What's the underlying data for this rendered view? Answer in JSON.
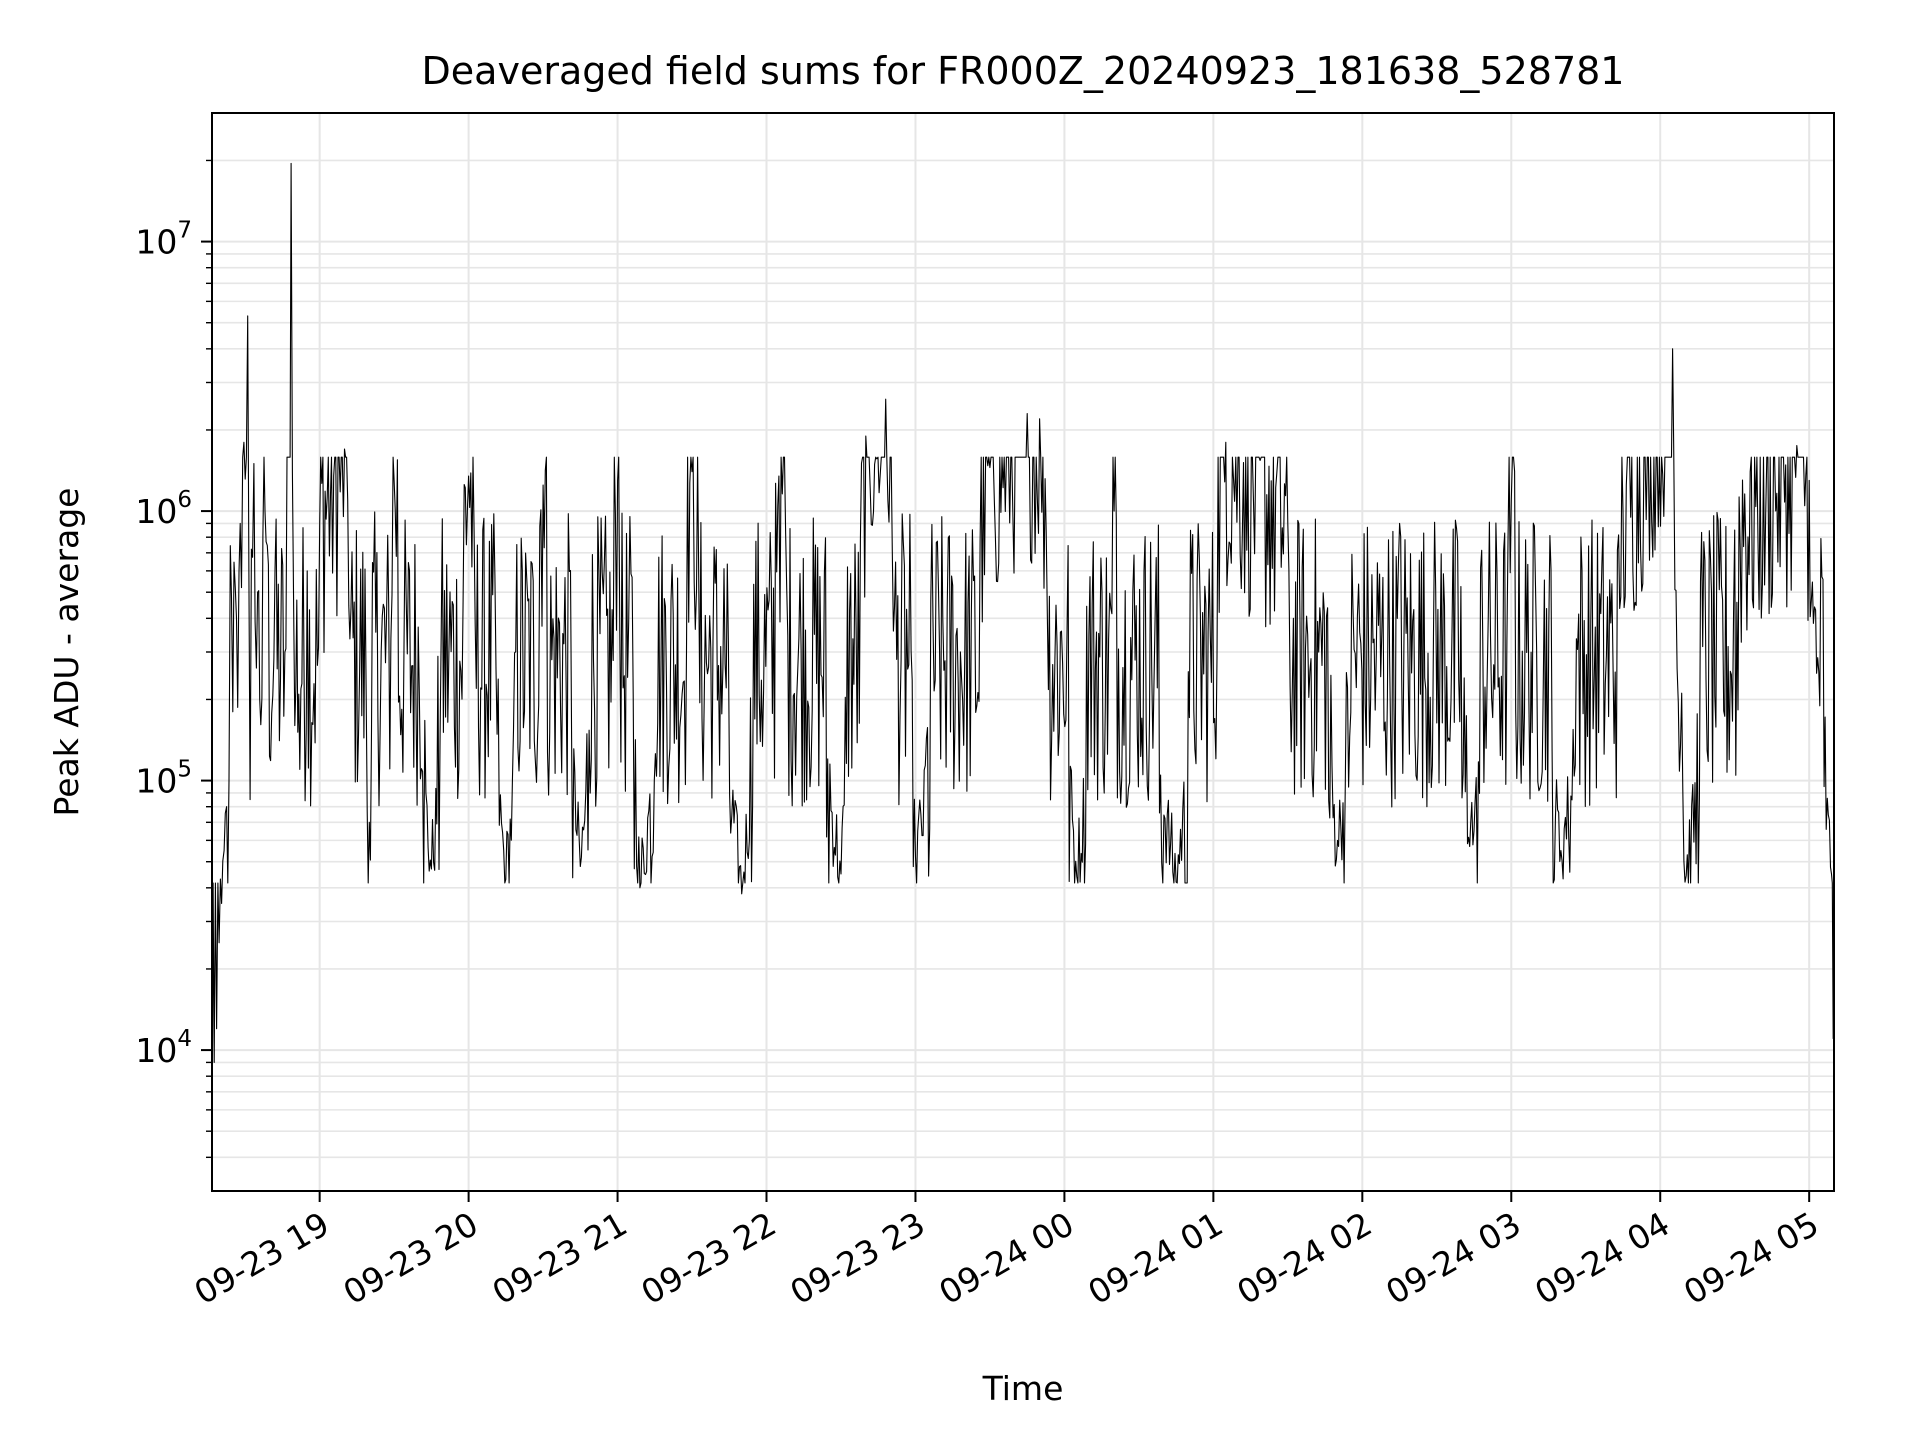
{
  "chart_data": {
    "type": "line",
    "title": "Deaveraged field sums for FR000Z_20240923_181638_528781",
    "xlabel": "Time",
    "ylabel": "Peak ADU - average",
    "yscale": "log",
    "ylim": [
      3000,
      30000000
    ],
    "xlim": [
      "2024-09-23 18:16:38",
      "2024-09-24 05:10:00"
    ],
    "grid": true,
    "line_color": "#000000",
    "grid_color": "#e6e6e6",
    "x_ticks": [
      {
        "t": "2024-09-23 19:00",
        "label": "09-23 19"
      },
      {
        "t": "2024-09-23 20:00",
        "label": "09-23 20"
      },
      {
        "t": "2024-09-23 21:00",
        "label": "09-23 21"
      },
      {
        "t": "2024-09-23 22:00",
        "label": "09-23 22"
      },
      {
        "t": "2024-09-23 23:00",
        "label": "09-23 23"
      },
      {
        "t": "2024-09-24 00:00",
        "label": "09-24 00"
      },
      {
        "t": "2024-09-24 01:00",
        "label": "09-24 01"
      },
      {
        "t": "2024-09-24 02:00",
        "label": "09-24 02"
      },
      {
        "t": "2024-09-24 03:00",
        "label": "09-24 03"
      },
      {
        "t": "2024-09-24 04:00",
        "label": "09-24 04"
      },
      {
        "t": "2024-09-24 05:00",
        "label": "09-24 05"
      }
    ],
    "y_ticks": [
      {
        "value": 10000,
        "base": "10",
        "exp": "4"
      },
      {
        "value": 100000,
        "base": "10",
        "exp": "5"
      },
      {
        "value": 1000000,
        "base": "10",
        "exp": "6"
      },
      {
        "value": 10000000,
        "base": "10",
        "exp": "7"
      }
    ],
    "series": [
      {
        "note_envelope": "dense noisy signal; points listed as approximate envelope",
        "points": [
          [
            "2024-09-23 18:16:40",
            4500
          ],
          [
            "2024-09-23 18:17:30",
            9000
          ],
          [
            "2024-09-23 18:18:30",
            12000
          ],
          [
            "2024-09-23 18:19:30",
            25000
          ],
          [
            "2024-09-23 18:20:30",
            35000
          ],
          [
            "2024-09-23 18:21:30",
            55000
          ],
          [
            "2024-09-23 18:22:30",
            80000
          ],
          [
            "2024-09-23 18:23:30",
            100000
          ],
          [
            "2024-09-23 18:25:00",
            180000
          ],
          [
            "2024-09-23 18:26:30",
            400000
          ],
          [
            "2024-09-23 18:28:00",
            900000
          ],
          [
            "2024-09-23 18:29:30",
            1800000
          ],
          [
            "2024-09-23 18:31:00",
            5300000
          ],
          [
            "2024-09-23 18:32:00",
            85000
          ],
          [
            "2024-09-23 18:33:30",
            1500000
          ],
          [
            "2024-09-23 18:35:00",
            500000
          ],
          [
            "2024-09-23 18:38:00",
            1000000
          ],
          [
            "2024-09-23 18:42:00",
            600000
          ],
          [
            "2024-09-23 18:46:00",
            300000
          ],
          [
            "2024-09-23 18:48:30",
            19500000
          ],
          [
            "2024-09-23 18:50:00",
            160000
          ],
          [
            "2024-09-23 18:52:00",
            110000
          ],
          [
            "2024-09-23 18:55:00",
            600000
          ],
          [
            "2024-09-23 19:00:00",
            900000
          ],
          [
            "2024-09-23 19:10:00",
            1700000
          ],
          [
            "2024-09-23 19:20:00",
            70000
          ],
          [
            "2024-09-23 19:30:00",
            1300000
          ],
          [
            "2024-09-23 19:45:00",
            47000
          ],
          [
            "2024-09-23 20:00:00",
            1350000
          ],
          [
            "2024-09-23 20:15:00",
            43000
          ],
          [
            "2024-09-23 20:30:00",
            1250000
          ],
          [
            "2024-09-23 20:45:00",
            48000
          ],
          [
            "2024-09-23 21:00:00",
            1300000
          ],
          [
            "2024-09-23 21:09:00",
            40000
          ],
          [
            "2024-09-23 21:30:00",
            1400000
          ],
          [
            "2024-09-23 21:50:00",
            38000
          ],
          [
            "2024-09-23 22:05:00",
            1350000
          ],
          [
            "2024-09-23 22:30:00",
            45000
          ],
          [
            "2024-09-23 22:40:00",
            1900000
          ],
          [
            "2024-09-23 22:48:00",
            2600000
          ],
          [
            "2024-09-23 23:00:00",
            52000
          ],
          [
            "2024-09-23 23:30:00",
            1450000
          ],
          [
            "2024-09-23 23:45:00",
            2300000
          ],
          [
            "2024-09-23 23:50:00",
            2200000
          ],
          [
            "2024-09-24 00:05:00",
            44000
          ],
          [
            "2024-09-24 00:20:00",
            1000000
          ],
          [
            "2024-09-24 00:45:00",
            42000
          ],
          [
            "2024-09-24 01:05:00",
            1800000
          ],
          [
            "2024-09-24 01:30:00",
            900000
          ],
          [
            "2024-09-24 01:50:00",
            60000
          ],
          [
            "2024-09-24 02:15:00",
            900000
          ],
          [
            "2024-09-24 02:45:00",
            65000
          ],
          [
            "2024-09-24 03:00:00",
            1100000
          ],
          [
            "2024-09-24 03:20:00",
            55000
          ],
          [
            "2024-09-24 03:45:00",
            1000000
          ],
          [
            "2024-09-24 04:05:00",
            4000000
          ],
          [
            "2024-09-24 04:10:00",
            42000
          ],
          [
            "2024-09-24 04:30:00",
            850000
          ],
          [
            "2024-09-24 04:55:00",
            1750000
          ],
          [
            "2024-09-24 05:00:00",
            1300000
          ],
          [
            "2024-09-24 05:03:00",
            250000
          ],
          [
            "2024-09-24 05:06:00",
            95000
          ],
          [
            "2024-09-24 05:09:00",
            45000
          ],
          [
            "2024-09-24 05:09:40",
            11000
          ]
        ]
      }
    ]
  }
}
